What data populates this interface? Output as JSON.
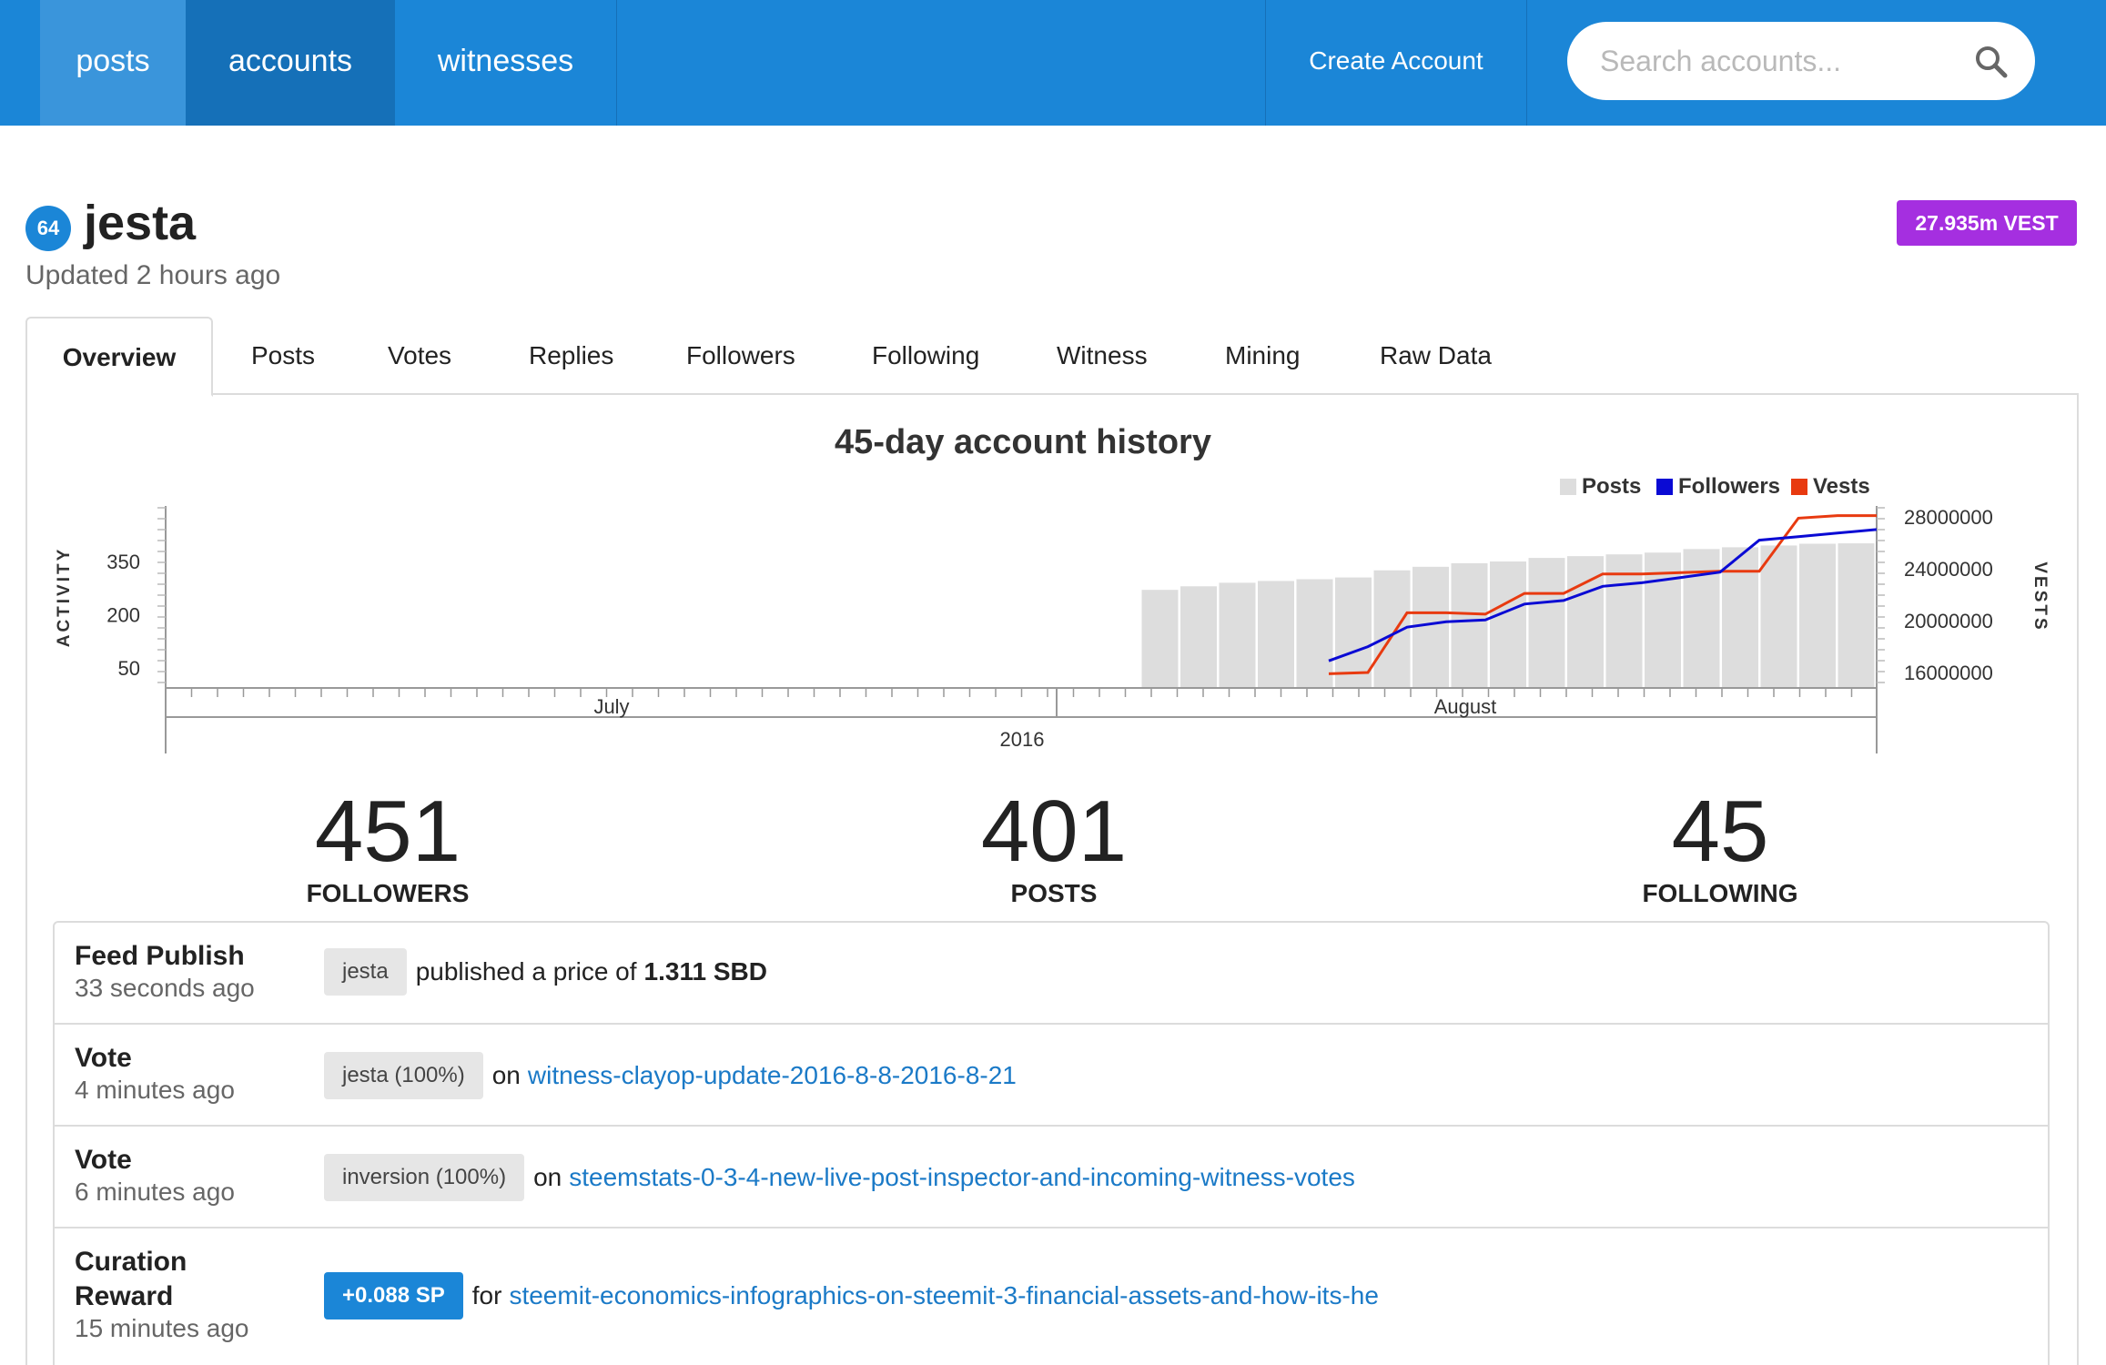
{
  "nav": {
    "posts": "posts",
    "accounts": "accounts",
    "witnesses": "witnesses",
    "create_account": "Create Account",
    "search_placeholder": "Search accounts..."
  },
  "account": {
    "reputation": "64",
    "name": "jesta",
    "updated": "Updated 2 hours ago",
    "vest": "27.935m VEST"
  },
  "tabs": [
    "Overview",
    "Posts",
    "Votes",
    "Replies",
    "Followers",
    "Following",
    "Witness",
    "Mining",
    "Raw Data"
  ],
  "chart_data": {
    "type": "bar+line",
    "title": "45-day account history",
    "legend": [
      "Posts",
      "Followers",
      "Vests"
    ],
    "legend_position": "top-right",
    "colors": {
      "posts": "#dddddd",
      "followers": "#0a0ad4",
      "vests": "#e83a10"
    },
    "left_axis": {
      "label": "ACTIVITY",
      "ticks": [
        "350",
        "200",
        "50"
      ]
    },
    "right_axis": {
      "label": "VESTS",
      "ticks": [
        "28000000",
        "24000000",
        "20000000",
        "16000000"
      ]
    },
    "x_axis": {
      "month_labels": [
        "July",
        "August"
      ],
      "year_label": "2016"
    },
    "posts": [
      270,
      280,
      290,
      295,
      300,
      305,
      325,
      335,
      345,
      350,
      360,
      365,
      370,
      375,
      385,
      390,
      395,
      400,
      401
    ],
    "followers": [
      70,
      110,
      165,
      180,
      185,
      230,
      240,
      280,
      290,
      305,
      320,
      410,
      420,
      430,
      440
    ],
    "vests": [
      15900000,
      16000000,
      20600000,
      20600000,
      20500000,
      22100000,
      22100000,
      23600000,
      23600000,
      23700000,
      23800000,
      23800000,
      27900000,
      28100000,
      28100000
    ]
  },
  "stats": [
    {
      "value": "451",
      "label": "FOLLOWERS"
    },
    {
      "value": "401",
      "label": "POSTS"
    },
    {
      "value": "45",
      "label": "FOLLOWING"
    }
  ],
  "activity": [
    {
      "type": "Feed Publish",
      "time": "33 seconds ago",
      "tag": "jesta",
      "text": "published a price of",
      "strong": "1.311 SBD"
    },
    {
      "type": "Vote",
      "time": "4 minutes ago",
      "tag": "jesta (100%)",
      "text": "on",
      "link": "witness-clayop-update-2016-8-8-2016-8-21"
    },
    {
      "type": "Vote",
      "time": "6 minutes ago",
      "tag": "inversion (100%)",
      "text": "on",
      "link": "steemstats-0-3-4-new-live-post-inspector-and-incoming-witness-votes"
    },
    {
      "type_line1": "Curation",
      "type_line2": "Reward",
      "time": "15 minutes ago",
      "tag": "+0.088 SP",
      "text": "for",
      "link": "steemit-economics-infographics-on-steemit-3-financial-assets-and-how-its-he"
    }
  ]
}
